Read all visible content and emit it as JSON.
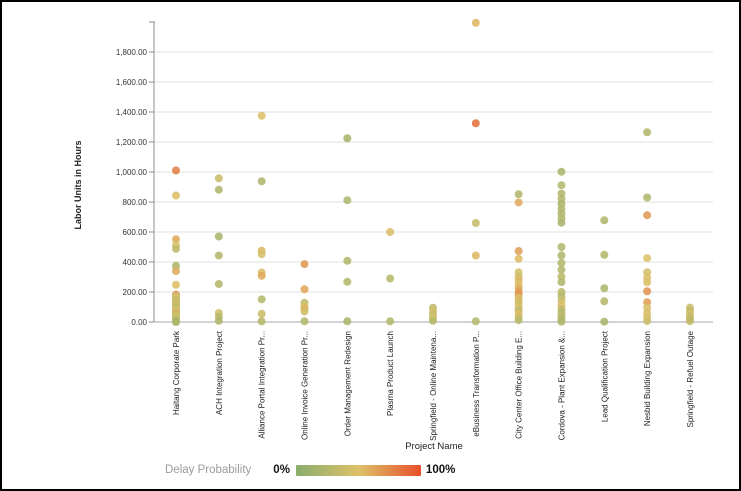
{
  "frame": {
    "background": "#ffffff",
    "border_color": "#000000"
  },
  "chart_data": {
    "type": "scatter",
    "title": "",
    "xlabel": "Project Name",
    "ylabel": "Labor Units in Hours",
    "ylim": [
      0,
      2000
    ],
    "grid": "horizontal",
    "ytick_values": [
      0,
      200,
      400,
      600,
      800,
      1000,
      1200,
      1400,
      1600,
      1800
    ],
    "ytick_labels": [
      "0.00",
      "200.00",
      "400.00",
      "600.00",
      "800.00",
      "1,000.00",
      "1,200.00",
      "1,400.00",
      "1,600.00",
      "1,800.00"
    ],
    "legend": {
      "label": "Delay Probability",
      "min_label": "0%",
      "max_label": "100%",
      "position": "bottom-left",
      "gradient": [
        "#8aad6e",
        "#ddc269",
        "#e8502b"
      ]
    },
    "point_format": [
      "labor_hours",
      "delay_pct"
    ],
    "categories": [
      "Haitang Corporate Park",
      "ACH Integration Project",
      "Alliance Portal Integration Pr...",
      "Online Invoice Generation Pr...",
      "Order Management Redesign",
      "Plasma Product Launch",
      "Springfield - Online Maintena...",
      "eBusiness Transformation P...",
      "City Center Office Building E...",
      "Cordova - Plant Expansion &...",
      "Lead Qualification Project",
      "Nesbid Building Expansion",
      "Springfield - Refuel Outage"
    ],
    "points_by_category": [
      [
        [
          1010,
          78
        ],
        [
          843,
          52
        ],
        [
          552,
          62
        ],
        [
          512,
          45
        ],
        [
          488,
          32
        ],
        [
          375,
          22
        ],
        [
          340,
          60
        ],
        [
          248,
          50
        ],
        [
          183,
          68
        ],
        [
          170,
          35
        ],
        [
          158,
          48
        ],
        [
          145,
          28
        ],
        [
          132,
          55
        ],
        [
          120,
          30
        ],
        [
          108,
          45
        ],
        [
          96,
          25
        ],
        [
          84,
          52
        ],
        [
          72,
          35
        ],
        [
          60,
          58
        ],
        [
          48,
          28
        ],
        [
          36,
          50
        ],
        [
          22,
          32
        ],
        [
          8,
          22
        ],
        [
          0,
          18
        ]
      ],
      [
        [
          958,
          38
        ],
        [
          882,
          22
        ],
        [
          570,
          20
        ],
        [
          443,
          24
        ],
        [
          253,
          26
        ],
        [
          60,
          42
        ],
        [
          35,
          30
        ],
        [
          8,
          22
        ]
      ],
      [
        [
          1375,
          50
        ],
        [
          938,
          22
        ],
        [
          475,
          55
        ],
        [
          452,
          45
        ],
        [
          330,
          52
        ],
        [
          308,
          60
        ],
        [
          151,
          25
        ],
        [
          55,
          38
        ],
        [
          5,
          26
        ]
      ],
      [
        [
          386,
          68
        ],
        [
          218,
          62
        ],
        [
          128,
          30
        ],
        [
          105,
          48
        ],
        [
          88,
          58
        ],
        [
          70,
          42
        ],
        [
          5,
          24
        ]
      ],
      [
        [
          1225,
          18
        ],
        [
          812,
          22
        ],
        [
          408,
          24
        ],
        [
          268,
          26
        ],
        [
          5,
          20
        ]
      ],
      [
        [
          600,
          52
        ],
        [
          290,
          28
        ],
        [
          5,
          24
        ]
      ],
      [
        [
          95,
          32
        ],
        [
          72,
          42
        ],
        [
          50,
          35
        ],
        [
          28,
          45
        ],
        [
          8,
          26
        ]
      ],
      [
        [
          1995,
          55
        ],
        [
          1325,
          85
        ],
        [
          660,
          35
        ],
        [
          443,
          55
        ],
        [
          5,
          25
        ]
      ],
      [
        [
          852,
          24
        ],
        [
          797,
          60
        ],
        [
          473,
          65
        ],
        [
          421,
          52
        ],
        [
          332,
          45
        ],
        [
          302,
          40
        ],
        [
          278,
          55
        ],
        [
          252,
          48
        ],
        [
          228,
          58
        ],
        [
          205,
          65
        ],
        [
          183,
          70
        ],
        [
          162,
          45
        ],
        [
          142,
          55
        ],
        [
          122,
          38
        ],
        [
          100,
          50
        ],
        [
          78,
          30
        ],
        [
          55,
          52
        ],
        [
          32,
          40
        ],
        [
          12,
          28
        ]
      ],
      [
        [
          1002,
          20
        ],
        [
          912,
          24
        ],
        [
          856,
          22
        ],
        [
          822,
          26
        ],
        [
          788,
          20
        ],
        [
          755,
          24
        ],
        [
          722,
          22
        ],
        [
          692,
          26
        ],
        [
          662,
          20
        ],
        [
          500,
          24
        ],
        [
          444,
          22
        ],
        [
          394,
          26
        ],
        [
          348,
          24
        ],
        [
          302,
          28
        ],
        [
          266,
          22
        ],
        [
          200,
          30
        ],
        [
          172,
          26
        ],
        [
          144,
          38
        ],
        [
          112,
          52
        ],
        [
          86,
          30
        ],
        [
          62,
          26
        ],
        [
          40,
          32
        ],
        [
          18,
          24
        ],
        [
          2,
          22
        ]
      ],
      [
        [
          678,
          22
        ],
        [
          448,
          25
        ],
        [
          225,
          22
        ],
        [
          138,
          26
        ],
        [
          2,
          20
        ]
      ],
      [
        [
          1265,
          24
        ],
        [
          830,
          22
        ],
        [
          712,
          68
        ],
        [
          426,
          50
        ],
        [
          332,
          45
        ],
        [
          295,
          52
        ],
        [
          265,
          48
        ],
        [
          205,
          70
        ],
        [
          132,
          66
        ],
        [
          96,
          45
        ],
        [
          62,
          52
        ],
        [
          32,
          45
        ],
        [
          6,
          40
        ]
      ],
      [
        [
          96,
          40
        ],
        [
          76,
          34
        ],
        [
          56,
          45
        ],
        [
          38,
          36
        ],
        [
          18,
          30
        ],
        [
          6,
          34
        ]
      ]
    ],
    "style": {
      "grid_color": "#e2e2e2",
      "axis_color": "#8c8c8c",
      "x_axis_color": "#a8a8a8",
      "tick_text_color": "#333333",
      "category_text_color": "#222222",
      "point_radius": 4,
      "point_opacity": 0.88
    }
  }
}
